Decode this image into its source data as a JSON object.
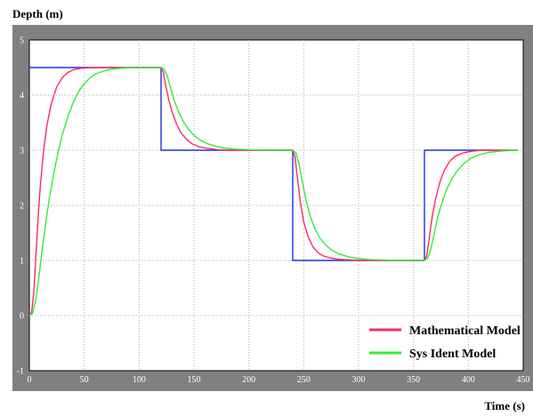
{
  "chart_data": {
    "type": "line",
    "title": "",
    "ylabel": "Depth (m)",
    "xlabel": "Time (s)",
    "xlim": [
      0,
      450
    ],
    "ylim": [
      -1,
      5
    ],
    "xticks": [
      0,
      50,
      100,
      150,
      200,
      250,
      300,
      350,
      400,
      450
    ],
    "yticks": [
      -1,
      0,
      1,
      2,
      3,
      4,
      5
    ],
    "grid": true,
    "legend_position": "bottom-right",
    "colors": {
      "frame": "#808080",
      "plot_background": "#ffffff",
      "grid": "#b0b0b0",
      "setpoint": "#1f2fe0",
      "mathematical": "#ff2a60",
      "sys_ident": "#33ee33"
    },
    "series": [
      {
        "key": "setpoint",
        "name": "",
        "x": [
          0,
          120,
          120,
          240,
          240,
          360,
          360,
          440
        ],
        "y": [
          4.5,
          4.5,
          3.0,
          3.0,
          1.0,
          1.0,
          3.0,
          3.0
        ]
      },
      {
        "key": "mathematical",
        "name": "Mathematical Model",
        "x": [
          0,
          2,
          4,
          6,
          8,
          10,
          13,
          16,
          20,
          25,
          30,
          35,
          40,
          45,
          50,
          60,
          70,
          80,
          90,
          100,
          110,
          120,
          122,
          124,
          127,
          130,
          134,
          138,
          143,
          148,
          155,
          163,
          172,
          182,
          195,
          210,
          225,
          240,
          242,
          244,
          247,
          250,
          254,
          258,
          263,
          268,
          275,
          283,
          292,
          302,
          315,
          330,
          345,
          360,
          362,
          364,
          367,
          370,
          374,
          378,
          383,
          388,
          395,
          403,
          412,
          422,
          435,
          445
        ],
        "y": [
          0,
          0.05,
          0.4,
          1.1,
          1.8,
          2.35,
          3.0,
          3.45,
          3.85,
          4.15,
          4.32,
          4.41,
          4.46,
          4.48,
          4.49,
          4.5,
          4.5,
          4.5,
          4.5,
          4.5,
          4.5,
          4.5,
          4.42,
          4.2,
          3.92,
          3.7,
          3.48,
          3.32,
          3.2,
          3.12,
          3.06,
          3.03,
          3.01,
          3.0,
          3.0,
          3.0,
          3.0,
          3.0,
          2.88,
          2.55,
          2.05,
          1.7,
          1.43,
          1.26,
          1.14,
          1.08,
          1.04,
          1.02,
          1.01,
          1.0,
          1.0,
          1.0,
          1.0,
          1.0,
          1.08,
          1.35,
          1.78,
          2.1,
          2.42,
          2.63,
          2.8,
          2.89,
          2.95,
          2.98,
          3.0,
          3.0,
          3.0,
          3.0
        ]
      },
      {
        "key": "sys_ident",
        "name": "Sys Ident Model",
        "x": [
          0,
          3,
          6,
          9,
          12,
          15,
          18,
          22,
          26,
          30,
          35,
          40,
          45,
          50,
          55,
          60,
          65,
          70,
          75,
          80,
          90,
          100,
          110,
          120,
          123,
          126,
          129,
          132,
          136,
          140,
          145,
          150,
          156,
          162,
          170,
          178,
          188,
          200,
          215,
          230,
          240,
          243,
          246,
          249,
          252,
          256,
          260,
          265,
          270,
          276,
          282,
          290,
          298,
          308,
          320,
          335,
          350,
          360,
          363,
          366,
          369,
          372,
          376,
          380,
          385,
          390,
          396,
          402,
          410,
          418,
          428,
          440,
          445
        ],
        "y": [
          0,
          0.04,
          0.3,
          0.75,
          1.25,
          1.7,
          2.1,
          2.55,
          2.95,
          3.28,
          3.6,
          3.87,
          4.07,
          4.21,
          4.31,
          4.38,
          4.42,
          4.45,
          4.47,
          4.48,
          4.5,
          4.5,
          4.5,
          4.5,
          4.47,
          4.33,
          4.1,
          3.9,
          3.7,
          3.53,
          3.38,
          3.27,
          3.18,
          3.12,
          3.07,
          3.04,
          3.02,
          3.01,
          3.0,
          3.0,
          3.0,
          2.95,
          2.72,
          2.4,
          2.1,
          1.8,
          1.58,
          1.4,
          1.28,
          1.18,
          1.12,
          1.07,
          1.04,
          1.02,
          1.01,
          1.0,
          1.0,
          1.0,
          1.04,
          1.22,
          1.5,
          1.78,
          2.05,
          2.28,
          2.48,
          2.63,
          2.76,
          2.85,
          2.92,
          2.96,
          2.98,
          3.0,
          3.0
        ]
      }
    ],
    "legend": [
      {
        "key": "mathematical",
        "label": "Mathematical Model"
      },
      {
        "key": "sys_ident",
        "label": "Sys Ident Model"
      }
    ]
  }
}
